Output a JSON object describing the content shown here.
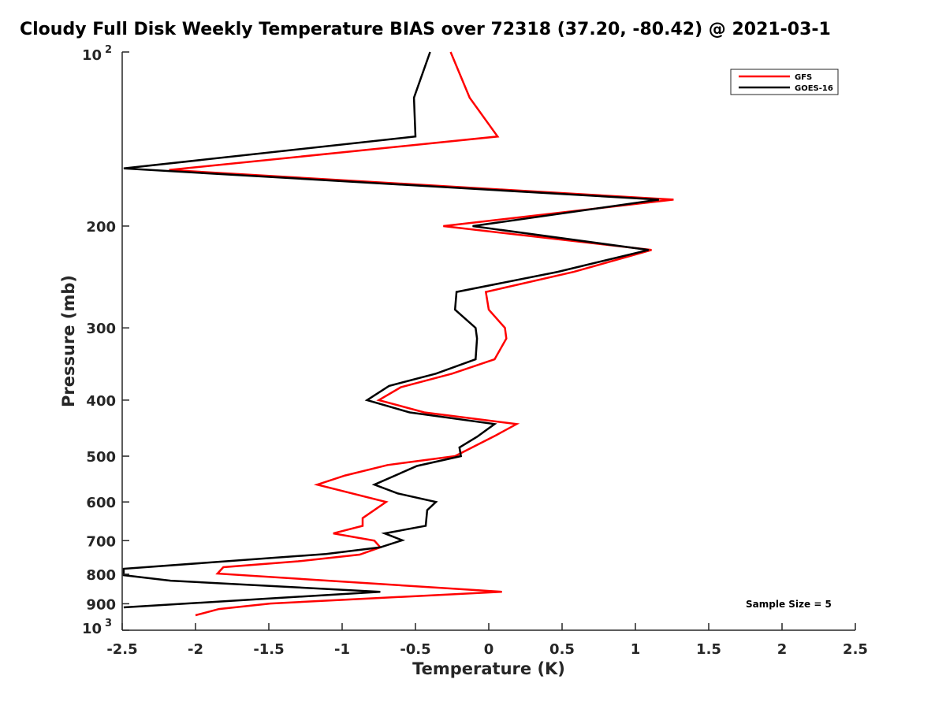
{
  "chart_data": {
    "type": "line",
    "title": "Cloudy Full Disk Weekly Temperature BIAS over 72318 (37.20, -80.42) @ 2021-03-1",
    "xlabel": "Temperature (K)",
    "ylabel": "Pressure (mb)",
    "xlim": [
      -2.5,
      2.5
    ],
    "ylim": [
      100,
      1000
    ],
    "yscale": "log",
    "yreversed": true,
    "grid": false,
    "xticks": [
      "-2.5",
      "-2",
      "-1.5",
      "-1",
      "-0.5",
      "0",
      "0.5",
      "1",
      "1.5",
      "2",
      "2.5"
    ],
    "yticks": [
      {
        "value": 100,
        "label": "10",
        "sup": "2"
      },
      {
        "value": 200,
        "label": "200"
      },
      {
        "value": 300,
        "label": "300"
      },
      {
        "value": 400,
        "label": "400"
      },
      {
        "value": 500,
        "label": "500"
      },
      {
        "value": 600,
        "label": "600"
      },
      {
        "value": 700,
        "label": "700"
      },
      {
        "value": 800,
        "label": "800"
      },
      {
        "value": 900,
        "label": "900"
      },
      {
        "value": 1000,
        "label": "10",
        "sup": "3"
      }
    ],
    "legend_position": "top-right",
    "annotation": "Sample Size = 5",
    "series": [
      {
        "name": "GFS",
        "color": "#ff0000",
        "points": [
          [
            -0.26,
            100
          ],
          [
            -0.13,
            120
          ],
          [
            0.06,
            140
          ],
          [
            -2.18,
            160
          ],
          [
            1.26,
            180
          ],
          [
            -0.31,
            200
          ],
          [
            1.11,
            220
          ],
          [
            0.58,
            240
          ],
          [
            -0.02,
            260
          ],
          [
            0.0,
            279
          ],
          [
            0.11,
            300
          ],
          [
            0.12,
            313
          ],
          [
            0.04,
            340
          ],
          [
            -0.25,
            360
          ],
          [
            -0.6,
            380
          ],
          [
            -0.75,
            400
          ],
          [
            -0.44,
            420
          ],
          [
            0.19,
            440
          ],
          [
            0.05,
            460
          ],
          [
            -0.23,
            500
          ],
          [
            -0.69,
            518
          ],
          [
            -0.98,
            540
          ],
          [
            -1.17,
            560
          ],
          [
            -0.7,
            600
          ],
          [
            -0.86,
            640
          ],
          [
            -0.86,
            660
          ],
          [
            -1.06,
            680
          ],
          [
            -0.78,
            700
          ],
          [
            -0.74,
            719
          ],
          [
            -0.88,
            740
          ],
          [
            -1.3,
            760
          ],
          [
            -1.81,
            778
          ],
          [
            -1.85,
            798
          ],
          [
            0.09,
            858
          ],
          [
            -1.49,
            899
          ],
          [
            -1.84,
            919
          ],
          [
            -2.0,
            942
          ]
        ]
      },
      {
        "name": "GOES-16",
        "color": "#000000",
        "points": [
          [
            -0.4,
            100
          ],
          [
            -0.51,
            120
          ],
          [
            -0.5,
            140
          ],
          [
            -2.49,
            159
          ],
          [
            1.16,
            180
          ],
          [
            -0.11,
            200
          ],
          [
            1.09,
            220
          ],
          [
            0.47,
            240
          ],
          [
            -0.22,
            260
          ],
          [
            -0.23,
            279
          ],
          [
            -0.09,
            300
          ],
          [
            -0.08,
            313
          ],
          [
            -0.09,
            340
          ],
          [
            -0.36,
            360
          ],
          [
            -0.68,
            378
          ],
          [
            -0.83,
            400
          ],
          [
            -0.54,
            420
          ],
          [
            0.04,
            440
          ],
          [
            -0.08,
            463
          ],
          [
            -0.2,
            483
          ],
          [
            -0.19,
            500
          ],
          [
            -0.49,
            520
          ],
          [
            -0.78,
            560
          ],
          [
            -0.62,
            580
          ],
          [
            -0.36,
            600
          ],
          [
            -0.42,
            620
          ],
          [
            -0.43,
            660
          ],
          [
            -0.71,
            680
          ],
          [
            -0.59,
            699
          ],
          [
            -0.74,
            719
          ],
          [
            -1.11,
            738
          ],
          [
            -2.49,
            783
          ],
          [
            -2.49,
            803
          ],
          [
            -2.17,
            821
          ],
          [
            -0.74,
            858
          ],
          [
            -2.49,
            913
          ]
        ]
      }
    ]
  }
}
